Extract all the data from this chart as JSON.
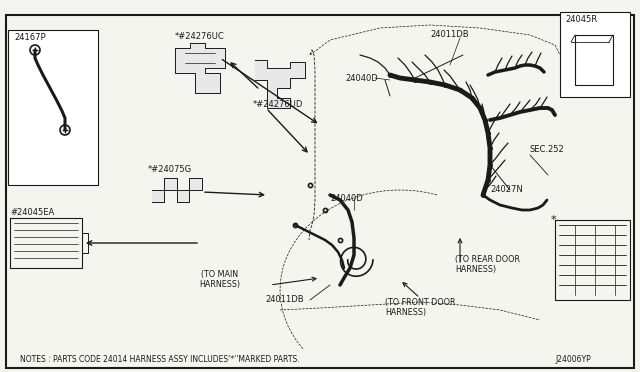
{
  "bg_color": "#f5f5f0",
  "line_color": "#1a1a1a",
  "fig_width": 6.4,
  "fig_height": 3.72,
  "dpi": 100,
  "notes_text": "NOTES : PARTS CODE 24014 HARNESS ASSY INCLUDES'*''MARKED PARTS.",
  "diagram_id": "J24006YP",
  "border": [
    0.01,
    0.04,
    0.98,
    0.95
  ]
}
